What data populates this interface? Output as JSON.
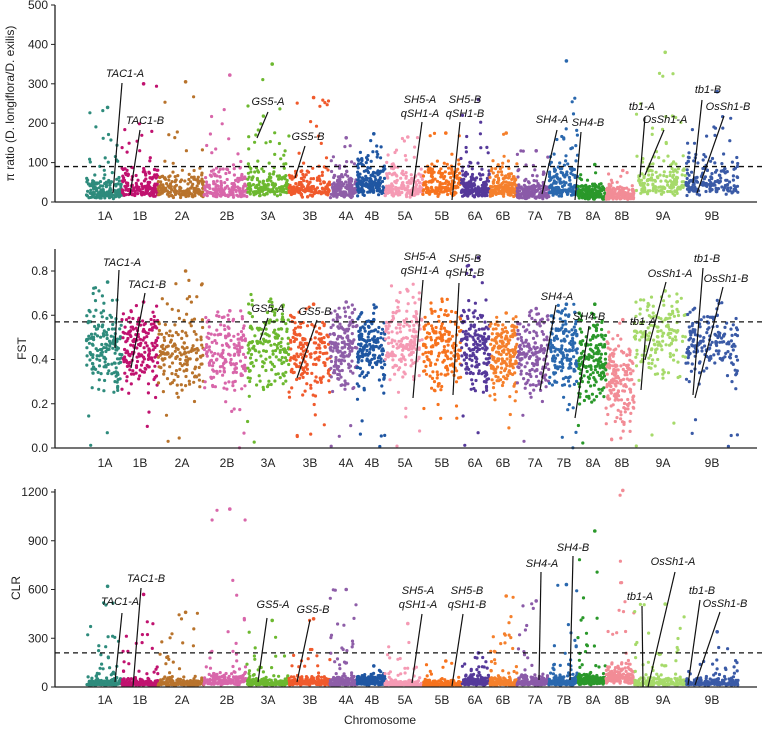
{
  "chart_data": [
    {
      "type": "scatter",
      "title": "",
      "ylabel": "π ratio (D. longiflora/D. exilis)",
      "xlabel": "",
      "ylim": [
        0,
        500
      ],
      "yticks": [
        "0",
        "100",
        "200",
        "300",
        "400",
        "500"
      ],
      "ytick_values": [
        0,
        100,
        200,
        300,
        400,
        500
      ],
      "threshold": 90,
      "typical": [
        40,
        60,
        50,
        55,
        70,
        60,
        50,
        75,
        60,
        70,
        55,
        60,
        35,
        60,
        30,
        30,
        75,
        80
      ],
      "max": [
        240,
        300,
        305,
        322,
        350,
        265,
        163,
        173,
        165,
        175,
        260,
        175,
        130,
        358,
        95,
        80,
        380,
        280
      ],
      "annotations": [
        {
          "gene": "TAC1-A",
          "chrom": "1A"
        },
        {
          "gene": "TAC1-B",
          "chrom": "1B"
        },
        {
          "gene": "GS5-A",
          "chrom": "3A"
        },
        {
          "gene": "GS5-B",
          "chrom": "3B"
        },
        {
          "gene": "SH5-A",
          "gene2": "qSH1-A",
          "chrom": "5A"
        },
        {
          "gene": "SH5-B",
          "gene2": "qSH1-B",
          "chrom": "5B"
        },
        {
          "gene": "SH4-A",
          "chrom": "7A"
        },
        {
          "gene": "SH4-B",
          "chrom": "7B"
        },
        {
          "gene": "tb1-A",
          "chrom": "9A"
        },
        {
          "gene": "OsSh1-A",
          "chrom": "9A"
        },
        {
          "gene": "tb1-B",
          "chrom": "9B"
        },
        {
          "gene": "OsSh1-B",
          "chrom": "9B"
        }
      ]
    },
    {
      "type": "scatter",
      "title": "",
      "ylabel": "FST",
      "xlabel": "",
      "ylim": [
        0,
        0.9
      ],
      "yticks": [
        "0.0",
        "0.2",
        "0.4",
        "0.6",
        "0.8"
      ],
      "ytick_values": [
        0,
        0.2,
        0.4,
        0.6,
        0.8
      ],
      "threshold": 0.57,
      "typical": [
        0.45,
        0.45,
        0.42,
        0.43,
        0.47,
        0.42,
        0.45,
        0.45,
        0.5,
        0.45,
        0.45,
        0.42,
        0.42,
        0.45,
        0.4,
        0.3,
        0.5,
        0.47
      ],
      "max": [
        0.75,
        0.66,
        0.8,
        0.62,
        0.64,
        0.65,
        0.66,
        0.58,
        0.71,
        0.62,
        0.86,
        0.61,
        0.63,
        0.65,
        0.65,
        0.58,
        0.71,
        0.6
      ],
      "annotations": [
        {
          "gene": "TAC1-A",
          "chrom": "1A"
        },
        {
          "gene": "TAC1-B",
          "chrom": "1B"
        },
        {
          "gene": "GS5-A",
          "chrom": "3A"
        },
        {
          "gene": "GS5-B",
          "chrom": "3B"
        },
        {
          "gene": "SH5-A",
          "gene2": "qSH1-A",
          "chrom": "5A"
        },
        {
          "gene": "SH5-B",
          "gene2": "qSH1-B",
          "chrom": "5B"
        },
        {
          "gene": "SH4-A",
          "chrom": "7A"
        },
        {
          "gene": "SH4-B",
          "chrom": "7B"
        },
        {
          "gene": "tb1-A",
          "chrom": "9A"
        },
        {
          "gene": "OsSh1-A",
          "chrom": "9A"
        },
        {
          "gene": "tb1-B",
          "chrom": "9B"
        },
        {
          "gene": "OsSh1-B",
          "chrom": "9B"
        }
      ]
    },
    {
      "type": "scatter",
      "title": "",
      "ylabel": "CLR",
      "xlabel": "Chromosome",
      "ylim": [
        0,
        1200
      ],
      "yticks": [
        "0",
        "300",
        "600",
        "900",
        "1200"
      ],
      "ytick_values": [
        0,
        300,
        600,
        900,
        1200
      ],
      "threshold": 210,
      "typical": [
        40,
        35,
        40,
        60,
        40,
        50,
        40,
        50,
        30,
        30,
        50,
        40,
        50,
        50,
        60,
        100,
        40,
        40
      ],
      "max": [
        620,
        570,
        460,
        1095,
        410,
        420,
        600,
        130,
        390,
        160,
        210,
        560,
        530,
        630,
        960,
        1210,
        510,
        340
      ],
      "annotations": [
        {
          "gene": "TAC1-A",
          "chrom": "1A"
        },
        {
          "gene": "TAC1-B",
          "chrom": "1B"
        },
        {
          "gene": "GS5-A",
          "chrom": "3A"
        },
        {
          "gene": "GS5-B",
          "chrom": "3B"
        },
        {
          "gene": "SH5-A",
          "gene2": "qSH1-A",
          "chrom": "5A"
        },
        {
          "gene": "SH5-B",
          "gene2": "qSH1-B",
          "chrom": "5B"
        },
        {
          "gene": "SH4-A",
          "chrom": "7A"
        },
        {
          "gene": "SH4-B",
          "chrom": "7B"
        },
        {
          "gene": "tb1-A",
          "chrom": "9A"
        },
        {
          "gene": "OsSh1-A",
          "chrom": "9A"
        },
        {
          "gene": "tb1-B",
          "chrom": "9B"
        },
        {
          "gene": "OsSh1-B",
          "chrom": "9B"
        }
      ]
    }
  ],
  "chromosomes": [
    "1A",
    "1B",
    "2A",
    "2B",
    "3A",
    "3B",
    "4A",
    "4B",
    "5A",
    "5B",
    "6A",
    "6B",
    "7A",
    "7B",
    "8A",
    "8B",
    "9A",
    "9B"
  ],
  "colors": [
    "#2e8b7c",
    "#c0126f",
    "#b8732c",
    "#d866aa",
    "#6cb82f",
    "#f05a2c",
    "#8e5ea8",
    "#1f56a2",
    "#f59ab4",
    "#f7731e",
    "#55399a",
    "#f5802c",
    "#8a5aa8",
    "#2a68ae",
    "#2a982a",
    "#f28c96",
    "#a6da6a",
    "#3a5aa6"
  ],
  "xaxis_label": "Chromosome"
}
